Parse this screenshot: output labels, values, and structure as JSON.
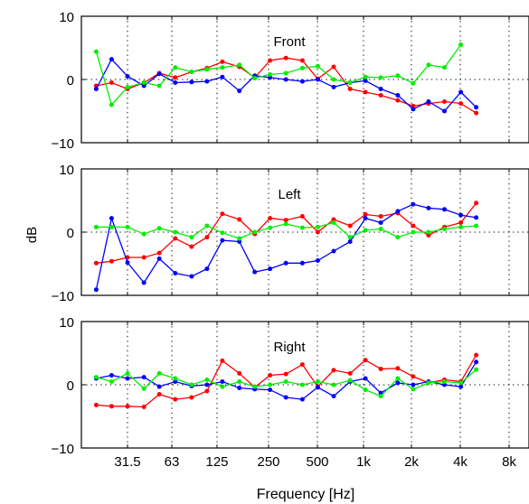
{
  "figure": {
    "ylabel": "dB",
    "xlabel": "Frequency [Hz]"
  },
  "chart_data": [
    {
      "type": "line",
      "title": "Front",
      "xscale": "log",
      "xticks": [
        "31.5",
        "63",
        "125",
        "250",
        "500",
        "1k",
        "2k",
        "4k",
        "8k"
      ],
      "yticks": [
        "10",
        "0",
        "−10"
      ],
      "ylim": [
        -10,
        10
      ],
      "grid": true,
      "x": [
        20,
        25,
        31.5,
        40,
        50,
        63,
        80,
        100,
        125,
        160,
        200,
        250,
        315,
        400,
        500,
        630,
        800,
        1000,
        1250,
        1600,
        2000,
        2500,
        3150,
        4000,
        5000
      ],
      "series": [
        {
          "color": "#ff0000",
          "values": [
            -1.0,
            -0.5,
            -1.5,
            -0.5,
            1.0,
            0.3,
            1.2,
            1.8,
            2.8,
            2.0,
            0.3,
            3.0,
            3.4,
            3.0,
            0.1,
            2.0,
            -1.5,
            -2.0,
            -2.5,
            -3.3,
            -4.2,
            -3.8,
            -3.5,
            -3.8,
            -5.3
          ]
        },
        {
          "color": "#0000ff",
          "values": [
            -1.5,
            3.2,
            0.5,
            -1.0,
            0.9,
            -0.5,
            -0.4,
            -0.3,
            0.4,
            -1.8,
            0.6,
            0.3,
            0.0,
            -0.3,
            0.0,
            -1.2,
            -0.5,
            -0.2,
            -1.5,
            -2.5,
            -4.7,
            -3.5,
            -5.0,
            -2.0,
            -4.4
          ]
        },
        {
          "color": "#00ee00",
          "values": [
            4.4,
            -4.0,
            -1.2,
            -0.5,
            -1.0,
            1.9,
            1.2,
            1.6,
            1.9,
            2.3,
            0.2,
            0.8,
            1.0,
            1.8,
            2.1,
            0.0,
            -0.5,
            0.4,
            0.3,
            0.6,
            -0.6,
            2.3,
            1.9,
            5.5,
            null
          ]
        }
      ]
    },
    {
      "type": "line",
      "title": "Left",
      "xscale": "log",
      "xticks": [
        "31.5",
        "63",
        "125",
        "250",
        "500",
        "1k",
        "2k",
        "4k",
        "8k"
      ],
      "yticks": [
        "10",
        "0",
        "−10"
      ],
      "ylim": [
        -10,
        10
      ],
      "grid": true,
      "x": [
        20,
        25,
        31.5,
        40,
        50,
        63,
        80,
        100,
        125,
        160,
        200,
        250,
        315,
        400,
        500,
        630,
        800,
        1000,
        1250,
        1600,
        2000,
        2500,
        3150,
        4000,
        5000
      ],
      "series": [
        {
          "color": "#ff0000",
          "values": [
            -4.9,
            -4.6,
            -4.0,
            -4.0,
            -3.3,
            -1.0,
            -2.3,
            -0.8,
            2.9,
            2.0,
            -0.3,
            2.2,
            1.9,
            2.5,
            0.0,
            2.0,
            1.0,
            2.8,
            2.5,
            3.0,
            1.0,
            -0.5,
            0.8,
            1.5,
            4.6
          ]
        },
        {
          "color": "#0000ff",
          "values": [
            -9.1,
            2.2,
            -4.8,
            -8.0,
            -4.2,
            -6.5,
            -7.0,
            -5.8,
            -1.3,
            -1.5,
            -6.3,
            -5.8,
            -4.9,
            -4.9,
            -4.5,
            -3.0,
            -1.5,
            2.2,
            1.5,
            3.3,
            4.4,
            3.8,
            3.6,
            2.7,
            2.3
          ]
        },
        {
          "color": "#00ee00",
          "values": [
            0.8,
            0.8,
            0.8,
            -0.3,
            0.6,
            0.0,
            -0.8,
            1.0,
            -0.1,
            -1.0,
            0.0,
            0.7,
            1.3,
            0.7,
            0.8,
            1.5,
            -0.8,
            0.3,
            0.5,
            -0.8,
            0.0,
            0.0,
            0.5,
            0.8,
            1.0
          ]
        }
      ]
    },
    {
      "type": "line",
      "title": "Right",
      "xscale": "log",
      "xticks": [
        "31.5",
        "63",
        "125",
        "250",
        "500",
        "1k",
        "2k",
        "4k",
        "8k"
      ],
      "yticks": [
        "10",
        "0",
        "−10"
      ],
      "ylim": [
        -10,
        10
      ],
      "grid": true,
      "x": [
        20,
        25,
        31.5,
        40,
        50,
        63,
        80,
        100,
        125,
        160,
        200,
        250,
        315,
        400,
        500,
        630,
        800,
        1000,
        1250,
        1600,
        2000,
        2500,
        3150,
        4000,
        5000
      ],
      "series": [
        {
          "color": "#ff0000",
          "values": [
            -3.2,
            -3.4,
            -3.4,
            -3.5,
            -1.5,
            -2.3,
            -2.0,
            -1.0,
            3.8,
            1.8,
            -0.4,
            1.5,
            1.7,
            3.2,
            -0.3,
            2.3,
            1.8,
            3.9,
            2.5,
            2.6,
            1.3,
            0.3,
            0.8,
            0.5,
            4.7
          ]
        },
        {
          "color": "#0000ff",
          "values": [
            1.0,
            1.5,
            1.0,
            1.2,
            -0.3,
            0.5,
            -0.2,
            0.0,
            0.5,
            -0.5,
            -0.7,
            -0.8,
            -2.0,
            -2.3,
            -0.4,
            -1.8,
            0.5,
            1.0,
            -1.3,
            0.3,
            0.0,
            0.5,
            0.0,
            -0.3,
            3.6
          ]
        },
        {
          "color": "#00ee00",
          "values": [
            1.2,
            0.5,
            1.8,
            -0.6,
            1.8,
            1.0,
            0.0,
            0.8,
            -0.3,
            0.5,
            -0.3,
            0.0,
            0.5,
            0.0,
            0.5,
            0.0,
            0.7,
            -0.8,
            -1.8,
            1.0,
            -0.7,
            0.3,
            0.5,
            0.3,
            2.4
          ]
        }
      ]
    }
  ]
}
